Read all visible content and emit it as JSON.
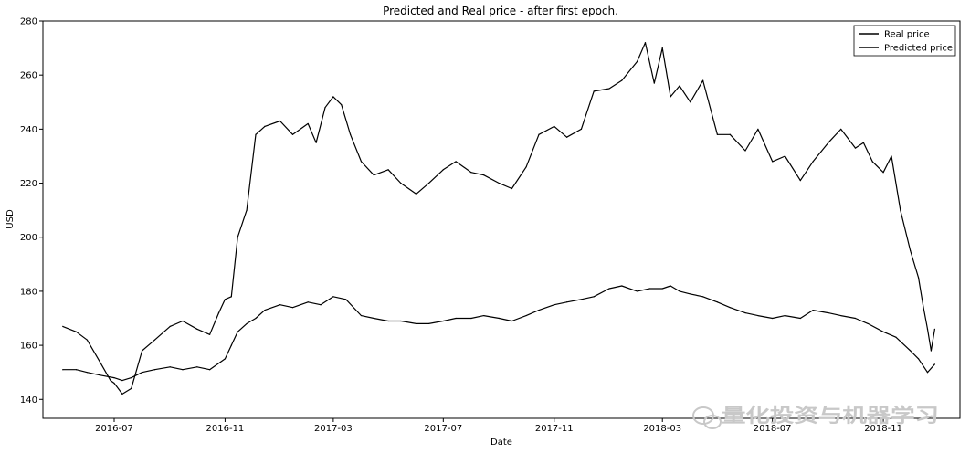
{
  "chart_data": {
    "type": "line",
    "title": "Predicted and Real price - after first epoch.",
    "xlabel": "Date",
    "ylabel": "USD",
    "ylim": [
      133,
      280
    ],
    "xlim": [
      "2016-04-13",
      "2019-01-25"
    ],
    "yticks": [
      140,
      160,
      180,
      200,
      220,
      240,
      260,
      280
    ],
    "xticks": [
      "2016-07",
      "2016-11",
      "2017-03",
      "2017-07",
      "2017-11",
      "2018-03",
      "2018-07",
      "2018-11"
    ],
    "grid": false,
    "legend_placement": "top-right",
    "series": [
      {
        "name": "Real price",
        "color": "#000000",
        "x": [
          "2016-05-05",
          "2016-05-20",
          "2016-06-01",
          "2016-06-15",
          "2016-06-27",
          "2016-07-01",
          "2016-07-10",
          "2016-07-20",
          "2016-08-01",
          "2016-08-15",
          "2016-09-01",
          "2016-09-15",
          "2016-10-01",
          "2016-10-15",
          "2016-10-25",
          "2016-11-01",
          "2016-11-08",
          "2016-11-15",
          "2016-11-25",
          "2016-12-05",
          "2016-12-15",
          "2017-01-01",
          "2017-01-15",
          "2017-02-01",
          "2017-02-10",
          "2017-02-20",
          "2017-03-01",
          "2017-03-10",
          "2017-03-20",
          "2017-04-01",
          "2017-04-15",
          "2017-05-01",
          "2017-05-15",
          "2017-06-01",
          "2017-06-15",
          "2017-07-01",
          "2017-07-15",
          "2017-08-01",
          "2017-08-15",
          "2017-09-01",
          "2017-09-15",
          "2017-10-01",
          "2017-10-15",
          "2017-11-01",
          "2017-11-15",
          "2017-12-01",
          "2017-12-15",
          "2018-01-01",
          "2018-01-15",
          "2018-02-01",
          "2018-02-10",
          "2018-02-20",
          "2018-03-01",
          "2018-03-10",
          "2018-03-20",
          "2018-04-01",
          "2018-04-15",
          "2018-05-01",
          "2018-05-15",
          "2018-06-01",
          "2018-06-15",
          "2018-07-01",
          "2018-07-15",
          "2018-08-01",
          "2018-08-15",
          "2018-09-01",
          "2018-09-15",
          "2018-10-01",
          "2018-10-10",
          "2018-10-20",
          "2018-11-01",
          "2018-11-10",
          "2018-11-20",
          "2018-12-01",
          "2018-12-10",
          "2018-12-15",
          "2018-12-20",
          "2018-12-24",
          "2018-12-28"
        ],
        "y": [
          167,
          165,
          162,
          154,
          147,
          146,
          142,
          144,
          158,
          162,
          167,
          169,
          166,
          164,
          172,
          177,
          178,
          200,
          210,
          238,
          241,
          243,
          238,
          242,
          235,
          248,
          252,
          249,
          238,
          228,
          223,
          225,
          220,
          216,
          220,
          225,
          228,
          224,
          223,
          220,
          218,
          226,
          238,
          241,
          237,
          240,
          254,
          255,
          258,
          265,
          272,
          257,
          270,
          252,
          256,
          250,
          258,
          238,
          238,
          232,
          240,
          228,
          230,
          221,
          228,
          235,
          240,
          233,
          235,
          228,
          224,
          230,
          210,
          195,
          185,
          175,
          166,
          158,
          166
        ]
      },
      {
        "name": "Predicted price",
        "color": "#000000",
        "x": [
          "2016-05-05",
          "2016-05-20",
          "2016-06-01",
          "2016-06-15",
          "2016-07-01",
          "2016-07-10",
          "2016-07-20",
          "2016-08-01",
          "2016-08-15",
          "2016-09-01",
          "2016-09-15",
          "2016-10-01",
          "2016-10-15",
          "2016-11-01",
          "2016-11-08",
          "2016-11-15",
          "2016-11-25",
          "2016-12-05",
          "2016-12-15",
          "2017-01-01",
          "2017-01-15",
          "2017-02-01",
          "2017-02-15",
          "2017-03-01",
          "2017-03-15",
          "2017-04-01",
          "2017-04-15",
          "2017-05-01",
          "2017-05-15",
          "2017-06-01",
          "2017-06-15",
          "2017-07-01",
          "2017-07-15",
          "2017-08-01",
          "2017-08-15",
          "2017-09-01",
          "2017-09-15",
          "2017-10-01",
          "2017-10-15",
          "2017-11-01",
          "2017-11-15",
          "2017-12-01",
          "2017-12-15",
          "2018-01-01",
          "2018-01-15",
          "2018-02-01",
          "2018-02-15",
          "2018-03-01",
          "2018-03-10",
          "2018-03-20",
          "2018-04-01",
          "2018-04-15",
          "2018-05-01",
          "2018-05-15",
          "2018-06-01",
          "2018-06-15",
          "2018-07-01",
          "2018-07-15",
          "2018-08-01",
          "2018-08-15",
          "2018-09-01",
          "2018-09-15",
          "2018-10-01",
          "2018-10-15",
          "2018-11-01",
          "2018-11-15",
          "2018-12-01",
          "2018-12-10",
          "2018-12-20",
          "2018-12-28"
        ],
        "y": [
          151,
          151,
          150,
          149,
          148,
          147,
          148,
          150,
          151,
          152,
          151,
          152,
          151,
          155,
          160,
          165,
          168,
          170,
          173,
          175,
          174,
          176,
          175,
          178,
          177,
          171,
          170,
          169,
          169,
          168,
          168,
          169,
          170,
          170,
          171,
          170,
          169,
          171,
          173,
          175,
          176,
          177,
          178,
          181,
          182,
          180,
          181,
          181,
          182,
          180,
          179,
          178,
          176,
          174,
          172,
          171,
          170,
          171,
          170,
          173,
          172,
          171,
          170,
          168,
          165,
          163,
          158,
          155,
          150,
          153
        ]
      }
    ],
    "watermark": "量化投资与机器学习"
  }
}
